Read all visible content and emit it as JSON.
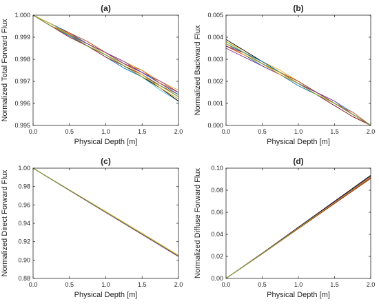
{
  "palette": [
    "#0072bd",
    "#d95319",
    "#edb120",
    "#7e2f8e",
    "#77ac30",
    "#4dbeee",
    "#a2142f",
    "#000000",
    "#0072bd",
    "#d95319",
    "#edb120",
    "#7e2f8e",
    "#77ac30"
  ],
  "chart_data": [
    {
      "type": "line",
      "title": "(a)",
      "xlabel": "Physical Depth [m]",
      "ylabel": "Normalized Total Forward Flux",
      "xlim": [
        0,
        2
      ],
      "ylim": [
        0.995,
        1.0
      ],
      "xticks": [
        "0.0",
        "0.5",
        "1.0",
        "1.5",
        "2.0"
      ],
      "yticks": [
        "0.995",
        "0.996",
        "0.997",
        "0.998",
        "0.999",
        "1.000"
      ],
      "grid": false,
      "legend": "none",
      "x": [
        0,
        0.25,
        0.5,
        0.75,
        1.0,
        1.25,
        1.5,
        1.75,
        2.0
      ],
      "series": [
        {
          "values": [
            1.0,
            0.9995,
            0.99905,
            0.9986,
            0.9981,
            0.9976,
            0.9972,
            0.9967,
            0.9962
          ]
        },
        {
          "values": [
            1.0,
            0.9996,
            0.99915,
            0.9987,
            0.9982,
            0.9977,
            0.9973,
            0.9968,
            0.9964
          ]
        },
        {
          "values": [
            1.0,
            0.9995,
            0.9991,
            0.9987,
            0.9983,
            0.9979,
            0.9975,
            0.997,
            0.9966
          ]
        },
        {
          "values": [
            1.0,
            0.9996,
            0.9992,
            0.9988,
            0.9983,
            0.9979,
            0.9974,
            0.9969,
            0.9965
          ]
        },
        {
          "values": [
            1.0,
            0.9995,
            0.9991,
            0.9986,
            0.9982,
            0.9978,
            0.9973,
            0.9968,
            0.9963
          ]
        },
        {
          "values": [
            1.0,
            0.9996,
            0.9991,
            0.9987,
            0.9982,
            0.9977,
            0.9972,
            0.9966,
            0.9961
          ]
        },
        {
          "values": [
            1.0,
            0.9995,
            0.999,
            0.9986,
            0.9981,
            0.9977,
            0.9973,
            0.9968,
            0.9963
          ]
        },
        {
          "values": [
            1.0,
            0.9995,
            0.9991,
            0.9986,
            0.9982,
            0.9977,
            0.9972,
            0.9967,
            0.9961
          ]
        },
        {
          "values": [
            1.0,
            0.9996,
            0.9992,
            0.9987,
            0.9983,
            0.9978,
            0.9974,
            0.9969,
            0.9964
          ]
        },
        {
          "values": [
            1.0,
            0.9995,
            0.9992,
            0.9988,
            0.9983,
            0.9978,
            0.9975,
            0.9969,
            0.9965
          ]
        },
        {
          "values": [
            1.0,
            0.9996,
            0.9991,
            0.9987,
            0.9982,
            0.9978,
            0.9973,
            0.9967,
            0.9962
          ]
        },
        {
          "values": [
            1.0,
            0.9995,
            0.9991,
            0.9987,
            0.9983,
            0.9978,
            0.9974,
            0.997,
            0.9965
          ]
        },
        {
          "values": [
            1.0,
            0.9995,
            0.9991,
            0.9986,
            0.9982,
            0.9977,
            0.9972,
            0.9968,
            0.9963
          ]
        }
      ]
    },
    {
      "type": "line",
      "title": "(b)",
      "xlabel": "Physical Depth [m]",
      "ylabel": "Normalized Backward Flux",
      "xlim": [
        0,
        2
      ],
      "ylim": [
        0,
        0.005
      ],
      "xticks": [
        "0.0",
        "0.5",
        "1.0",
        "1.5",
        "2.0"
      ],
      "yticks": [
        "0.000",
        "0.001",
        "0.002",
        "0.003",
        "0.004",
        "0.005"
      ],
      "grid": false,
      "legend": "none",
      "x": [
        0,
        0.25,
        0.5,
        0.75,
        1.0,
        1.25,
        1.5,
        1.75,
        2.0
      ],
      "series": [
        {
          "values": [
            0.0036,
            0.0032,
            0.0027,
            0.0023,
            0.0018,
            0.0014,
            0.0009,
            0.0004,
            0.0
          ]
        },
        {
          "values": [
            0.0037,
            0.0033,
            0.0029,
            0.0024,
            0.0019,
            0.0015,
            0.001,
            0.0005,
            0.0
          ]
        },
        {
          "values": [
            0.0038,
            0.0034,
            0.0029,
            0.0025,
            0.002,
            0.0015,
            0.001,
            0.0005,
            0.0
          ]
        },
        {
          "values": [
            0.0035,
            0.0031,
            0.0027,
            0.0023,
            0.0019,
            0.0015,
            0.001,
            0.0005,
            0.0
          ]
        },
        {
          "values": [
            0.0036,
            0.0032,
            0.0028,
            0.0024,
            0.0019,
            0.0014,
            0.001,
            0.0005,
            0.0
          ]
        },
        {
          "values": [
            0.0037,
            0.0033,
            0.0028,
            0.0024,
            0.002,
            0.0015,
            0.0011,
            0.0006,
            0.0
          ]
        },
        {
          "values": [
            0.0036,
            0.0032,
            0.0028,
            0.0023,
            0.0019,
            0.0014,
            0.0009,
            0.0004,
            0.0
          ]
        },
        {
          "values": [
            0.0039,
            0.0034,
            0.0029,
            0.0024,
            0.002,
            0.0015,
            0.001,
            0.0005,
            0.0
          ]
        },
        {
          "values": [
            0.0037,
            0.0033,
            0.0029,
            0.0024,
            0.0019,
            0.0015,
            0.001,
            0.0005,
            0.0
          ]
        },
        {
          "values": [
            0.0036,
            0.0032,
            0.0028,
            0.0024,
            0.002,
            0.0015,
            0.001,
            0.0006,
            0.0
          ]
        },
        {
          "values": [
            0.0037,
            0.0032,
            0.0028,
            0.0023,
            0.0019,
            0.0014,
            0.001,
            0.0005,
            0.0
          ]
        },
        {
          "values": [
            0.0036,
            0.0033,
            0.0028,
            0.0024,
            0.0019,
            0.0015,
            0.0011,
            0.0005,
            0.0
          ]
        },
        {
          "values": [
            0.0038,
            0.0033,
            0.0028,
            0.0024,
            0.0019,
            0.0014,
            0.001,
            0.0005,
            0.0
          ]
        }
      ]
    },
    {
      "type": "line",
      "title": "(c)",
      "xlabel": "Physical Depth [m]",
      "ylabel": "Normalized Direct Forward Flux",
      "xlim": [
        0,
        2
      ],
      "ylim": [
        0.88,
        1.0
      ],
      "xticks": [
        "0.0",
        "0.5",
        "1.0",
        "1.5",
        "2.0"
      ],
      "yticks": [
        "0.88",
        "0.90",
        "0.92",
        "0.94",
        "0.96",
        "0.98",
        "1.00"
      ],
      "grid": false,
      "legend": "none",
      "x": [
        0,
        0.5,
        1.0,
        1.5,
        2.0
      ],
      "series": [
        {
          "values": [
            1.0,
            0.976,
            0.952,
            0.928,
            0.904
          ]
        },
        {
          "values": [
            1.0,
            0.9762,
            0.9525,
            0.9285,
            0.9045
          ]
        },
        {
          "values": [
            1.0,
            0.9764,
            0.9528,
            0.9291,
            0.9052
          ]
        },
        {
          "values": [
            1.0,
            0.9758,
            0.9518,
            0.9278,
            0.9038
          ]
        },
        {
          "values": [
            1.0,
            0.9761,
            0.9522,
            0.9283,
            0.9043
          ]
        },
        {
          "values": [
            1.0,
            0.9763,
            0.9526,
            0.9288,
            0.9049
          ]
        },
        {
          "values": [
            1.0,
            0.9759,
            0.9519,
            0.928,
            0.904
          ]
        },
        {
          "values": [
            1.0,
            0.976,
            0.9521,
            0.9282,
            0.9042
          ]
        },
        {
          "values": [
            1.0,
            0.9762,
            0.9524,
            0.9287,
            0.9047
          ]
        },
        {
          "values": [
            1.0,
            0.9761,
            0.9523,
            0.9284,
            0.9044
          ]
        },
        {
          "values": [
            1.0,
            0.9763,
            0.9527,
            0.9289,
            0.9051
          ]
        },
        {
          "values": [
            1.0,
            0.976,
            0.952,
            0.9281,
            0.9041
          ]
        },
        {
          "values": [
            1.0,
            0.9762,
            0.9524,
            0.9286,
            0.9046
          ]
        }
      ]
    },
    {
      "type": "line",
      "title": "(d)",
      "xlabel": "Physical Depth [m]",
      "ylabel": "Normalized Diffuse Forward Flux",
      "xlim": [
        0,
        2
      ],
      "ylim": [
        0,
        0.1
      ],
      "xticks": [
        "0.0",
        "0.5",
        "1.0",
        "1.5",
        "2.0"
      ],
      "yticks": [
        "0.00",
        "0.02",
        "0.04",
        "0.06",
        "0.08",
        "0.10"
      ],
      "grid": false,
      "legend": "none",
      "x": [
        0,
        0.5,
        1.0,
        1.5,
        2.0
      ],
      "series": [
        {
          "values": [
            0.0,
            0.0225,
            0.0455,
            0.0685,
            0.0915
          ]
        },
        {
          "values": [
            0.0,
            0.0228,
            0.0462,
            0.0695,
            0.093
          ]
        },
        {
          "values": [
            0.0,
            0.0222,
            0.045,
            0.0678,
            0.0905
          ]
        },
        {
          "values": [
            0.0,
            0.0226,
            0.0458,
            0.069,
            0.0922
          ]
        },
        {
          "values": [
            0.0,
            0.0224,
            0.0453,
            0.0682,
            0.0912
          ]
        },
        {
          "values": [
            0.0,
            0.0227,
            0.046,
            0.0692,
            0.0925
          ]
        },
        {
          "values": [
            0.0,
            0.0223,
            0.0452,
            0.068,
            0.0908
          ]
        },
        {
          "values": [
            0.0,
            0.0229,
            0.0465,
            0.07,
            0.0935
          ]
        },
        {
          "values": [
            0.0,
            0.0225,
            0.0456,
            0.0687,
            0.0918
          ]
        },
        {
          "values": [
            0.0,
            0.0224,
            0.0454,
            0.0684,
            0.0914
          ]
        },
        {
          "values": [
            0.0,
            0.0226,
            0.0459,
            0.0691,
            0.0923
          ]
        },
        {
          "values": [
            0.0,
            0.0227,
            0.0461,
            0.0694,
            0.0927
          ]
        },
        {
          "values": [
            0.0,
            0.0225,
            0.0457,
            0.0688,
            0.0919
          ]
        }
      ]
    }
  ]
}
